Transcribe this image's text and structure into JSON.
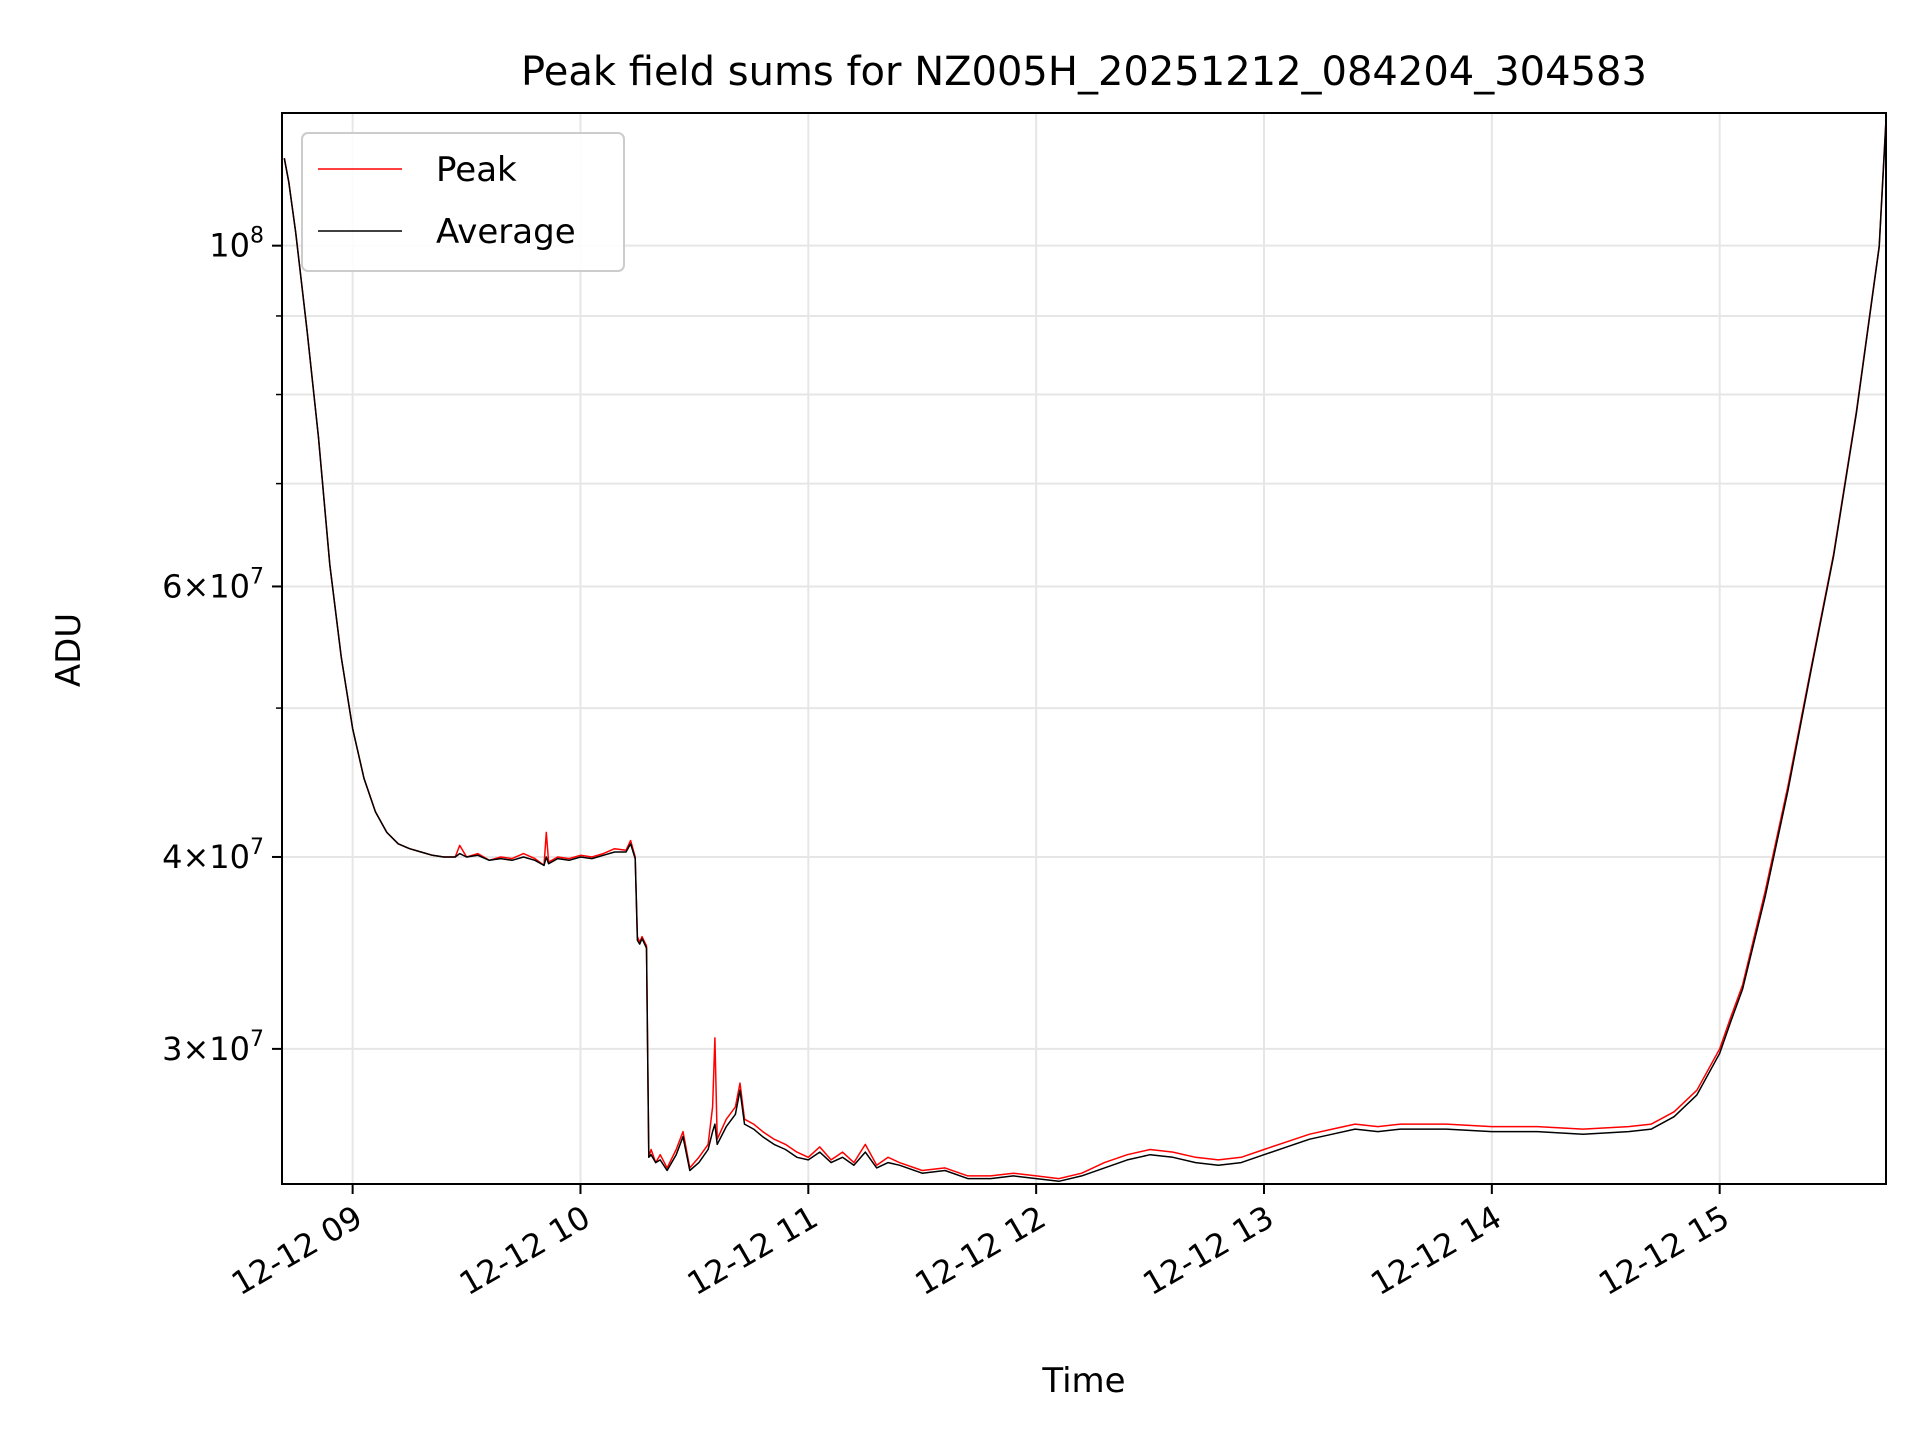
{
  "chart_data": {
    "type": "line",
    "title": "Peak field sums for NZ005H_20251212_084204_304583",
    "xlabel": "Time",
    "ylabel": "ADU",
    "yscale": "log",
    "ylim": [
      24500000,
      122000000
    ],
    "xlim_hours": [
      8.69,
      15.73
    ],
    "grid": true,
    "legend_position": "upper-left",
    "x_ticks": [
      {
        "hour": 9,
        "label": "12-12 09"
      },
      {
        "hour": 10,
        "label": "12-12 10"
      },
      {
        "hour": 11,
        "label": "12-12 11"
      },
      {
        "hour": 12,
        "label": "12-12 12"
      },
      {
        "hour": 13,
        "label": "12-12 13"
      },
      {
        "hour": 14,
        "label": "12-12 14"
      },
      {
        "hour": 15,
        "label": "12-12 15"
      }
    ],
    "y_ticks": [
      {
        "value": 100000000,
        "mantissa": "",
        "exponent": "8"
      },
      {
        "value": 60000000,
        "mantissa": "6",
        "exponent": "7"
      },
      {
        "value": 40000000,
        "mantissa": "4",
        "exponent": "7"
      },
      {
        "value": 30000000,
        "mantissa": "3",
        "exponent": "7"
      }
    ],
    "y_minor_ticks": [
      50000000,
      70000000,
      80000000,
      90000000
    ],
    "series": [
      {
        "name": "Peak",
        "color": "#ff0000",
        "x_hours": [
          8.7,
          8.72,
          8.75,
          8.8,
          8.85,
          8.9,
          8.95,
          9.0,
          9.05,
          9.1,
          9.15,
          9.2,
          9.25,
          9.3,
          9.35,
          9.4,
          9.45,
          9.47,
          9.5,
          9.55,
          9.6,
          9.65,
          9.7,
          9.75,
          9.8,
          9.84,
          9.85,
          9.86,
          9.9,
          9.95,
          10.0,
          10.05,
          10.1,
          10.15,
          10.2,
          10.22,
          10.24,
          10.25,
          10.26,
          10.27,
          10.29,
          10.3,
          10.31,
          10.33,
          10.35,
          10.38,
          10.42,
          10.45,
          10.48,
          10.52,
          10.56,
          10.58,
          10.59,
          10.6,
          10.64,
          10.68,
          10.7,
          10.72,
          10.76,
          10.8,
          10.85,
          10.9,
          10.95,
          11.0,
          11.05,
          11.1,
          11.15,
          11.2,
          11.25,
          11.3,
          11.35,
          11.4,
          11.5,
          11.6,
          11.7,
          11.8,
          11.9,
          12.0,
          12.1,
          12.2,
          12.3,
          12.4,
          12.5,
          12.6,
          12.7,
          12.8,
          12.9,
          13.0,
          13.1,
          13.2,
          13.3,
          13.4,
          13.5,
          13.6,
          13.8,
          14.0,
          14.2,
          14.4,
          14.6,
          14.7,
          14.8,
          14.9,
          15.0,
          15.05,
          15.1,
          15.2,
          15.3,
          15.4,
          15.5,
          15.6,
          15.7,
          15.73
        ],
        "values": [
          114000000,
          110000000,
          102000000,
          88000000,
          75000000,
          62000000,
          54000000,
          48500000,
          45000000,
          42800000,
          41500000,
          40800000,
          40500000,
          40300000,
          40100000,
          40000000,
          40000000,
          40700000,
          40000000,
          40200000,
          39800000,
          40000000,
          39900000,
          40200000,
          39900000,
          39500000,
          41500000,
          39700000,
          40000000,
          39900000,
          40100000,
          40000000,
          40200000,
          40500000,
          40400000,
          41000000,
          40000000,
          35500000,
          35200000,
          35500000,
          35000000,
          25500000,
          25800000,
          25300000,
          25600000,
          25100000,
          25800000,
          26500000,
          25100000,
          25500000,
          26000000,
          27500000,
          30500000,
          26200000,
          27000000,
          27500000,
          28500000,
          27000000,
          26800000,
          26500000,
          26200000,
          26000000,
          25700000,
          25500000,
          25900000,
          25400000,
          25700000,
          25300000,
          26000000,
          25200000,
          25500000,
          25300000,
          25000000,
          25100000,
          24800000,
          24800000,
          24900000,
          24800000,
          24700000,
          24900000,
          25300000,
          25600000,
          25800000,
          25700000,
          25500000,
          25400000,
          25500000,
          25800000,
          26100000,
          26400000,
          26600000,
          26800000,
          26700000,
          26800000,
          26800000,
          26700000,
          26700000,
          26600000,
          26700000,
          26800000,
          27300000,
          28200000,
          30000000,
          31500000,
          33000000,
          38000000,
          44500000,
          53000000,
          63000000,
          78000000,
          100000000,
          121000000
        ]
      },
      {
        "name": "Average",
        "color": "#000000",
        "x_hours": [
          8.7,
          8.72,
          8.75,
          8.8,
          8.85,
          8.9,
          8.95,
          9.0,
          9.05,
          9.1,
          9.15,
          9.2,
          9.25,
          9.3,
          9.35,
          9.4,
          9.45,
          9.47,
          9.5,
          9.55,
          9.6,
          9.65,
          9.7,
          9.75,
          9.8,
          9.84,
          9.85,
          9.86,
          9.9,
          9.95,
          10.0,
          10.05,
          10.1,
          10.15,
          10.2,
          10.22,
          10.24,
          10.25,
          10.26,
          10.27,
          10.29,
          10.3,
          10.31,
          10.33,
          10.35,
          10.38,
          10.42,
          10.45,
          10.48,
          10.52,
          10.56,
          10.58,
          10.59,
          10.6,
          10.64,
          10.68,
          10.7,
          10.72,
          10.76,
          10.8,
          10.85,
          10.9,
          10.95,
          11.0,
          11.05,
          11.1,
          11.15,
          11.2,
          11.25,
          11.3,
          11.35,
          11.4,
          11.5,
          11.6,
          11.7,
          11.8,
          11.9,
          12.0,
          12.1,
          12.2,
          12.3,
          12.4,
          12.5,
          12.6,
          12.7,
          12.8,
          12.9,
          13.0,
          13.1,
          13.2,
          13.3,
          13.4,
          13.5,
          13.6,
          13.8,
          14.0,
          14.2,
          14.4,
          14.6,
          14.7,
          14.8,
          14.9,
          15.0,
          15.05,
          15.1,
          15.2,
          15.3,
          15.4,
          15.5,
          15.6,
          15.7,
          15.73
        ],
        "values": [
          114000000,
          110000000,
          102000000,
          88000000,
          75000000,
          62000000,
          54000000,
          48500000,
          45000000,
          42800000,
          41500000,
          40800000,
          40500000,
          40300000,
          40100000,
          40000000,
          40000000,
          40200000,
          40000000,
          40100000,
          39800000,
          39900000,
          39800000,
          40000000,
          39800000,
          39500000,
          40000000,
          39600000,
          39900000,
          39800000,
          40000000,
          39900000,
          40100000,
          40300000,
          40300000,
          40800000,
          39900000,
          35300000,
          35100000,
          35400000,
          34900000,
          25500000,
          25600000,
          25300000,
          25400000,
          25000000,
          25600000,
          26300000,
          25000000,
          25300000,
          25800000,
          26500000,
          26800000,
          26000000,
          26700000,
          27200000,
          28200000,
          26800000,
          26600000,
          26300000,
          26000000,
          25800000,
          25500000,
          25400000,
          25700000,
          25300000,
          25500000,
          25200000,
          25700000,
          25100000,
          25300000,
          25200000,
          24900000,
          25000000,
          24700000,
          24700000,
          24800000,
          24700000,
          24600000,
          24800000,
          25100000,
          25400000,
          25600000,
          25500000,
          25300000,
          25200000,
          25300000,
          25600000,
          25900000,
          26200000,
          26400000,
          26600000,
          26500000,
          26600000,
          26600000,
          26500000,
          26500000,
          26400000,
          26500000,
          26600000,
          27100000,
          28000000,
          29800000,
          31300000,
          32800000,
          37700000,
          44200000,
          52800000,
          62800000,
          77800000,
          99800000,
          120500000
        ]
      }
    ]
  }
}
